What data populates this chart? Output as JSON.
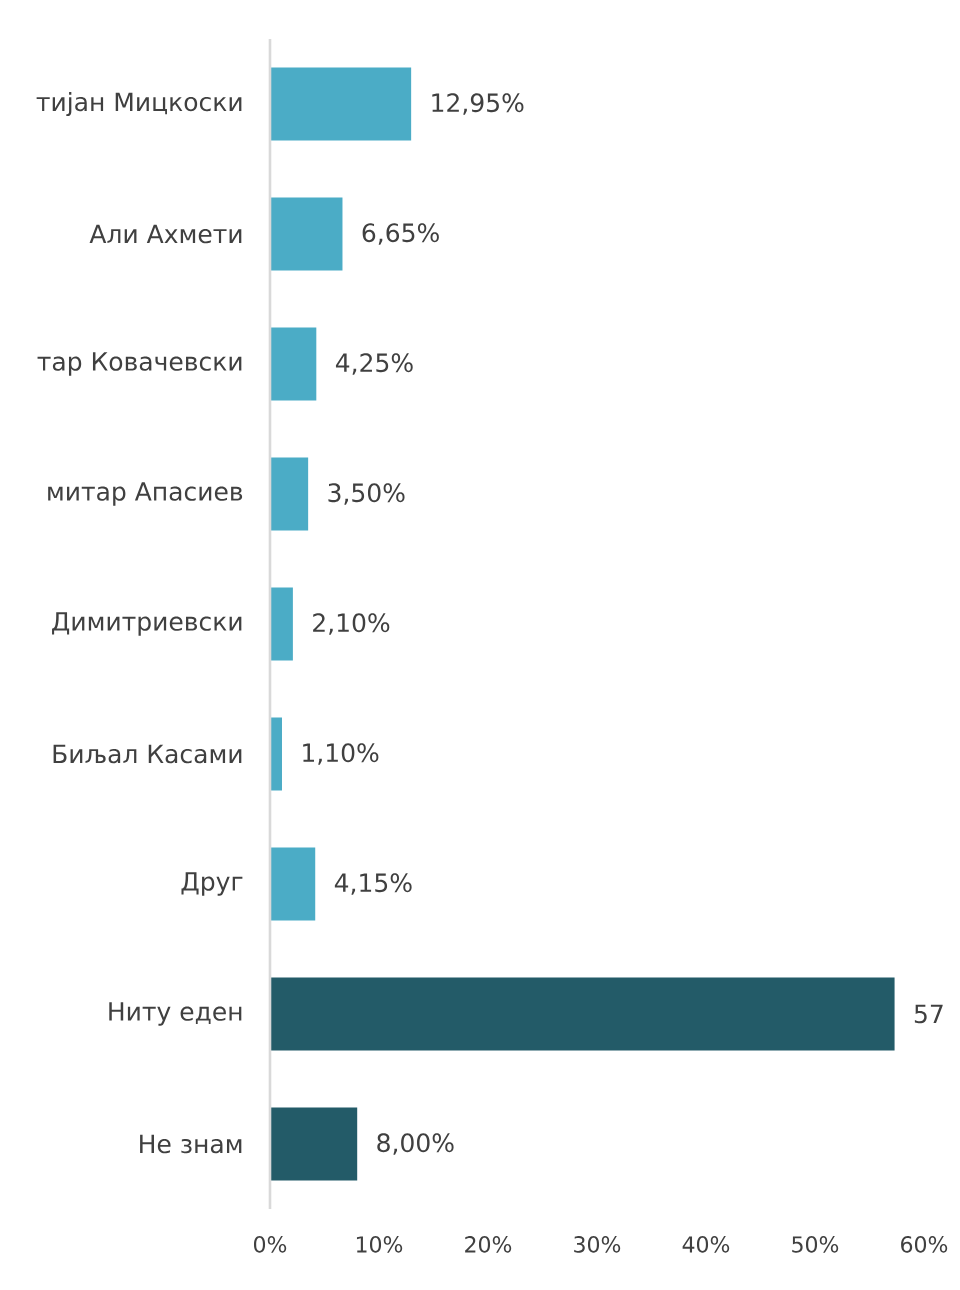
{
  "chart_data": {
    "type": "bar",
    "orientation": "horizontal",
    "categories": [
      "тијан Мицкоски",
      "Али Ахмети",
      "тар Ковачевски",
      "митар Апасиев",
      "Димитриевски",
      "Биљал Касами",
      "Друг",
      "Ниту еден",
      "Не знам"
    ],
    "values": [
      12.95,
      6.65,
      4.25,
      3.5,
      2.1,
      1.1,
      4.15,
      57.3,
      8.0
    ],
    "colors": [
      "#4bacc6",
      "#4bacc6",
      "#4bacc6",
      "#4bacc6",
      "#4bacc6",
      "#4bacc6",
      "#4bacc6",
      "#235b68",
      "#235b68"
    ],
    "value_labels": [
      "12,95%",
      "6,65%",
      "4,25%",
      "3,50%",
      "2,10%",
      "1,10%",
      "4,15%",
      "57",
      "8,00%"
    ],
    "xlim": [
      0,
      60
    ],
    "xticks": [
      {
        "value": 0,
        "label": "0%"
      },
      {
        "value": 10,
        "label": "10%"
      },
      {
        "value": 20,
        "label": "20%"
      },
      {
        "value": 30,
        "label": "30%"
      },
      {
        "value": 40,
        "label": "40%"
      },
      {
        "value": 50,
        "label": "50%"
      },
      {
        "value": 60,
        "label": "60%"
      }
    ]
  }
}
